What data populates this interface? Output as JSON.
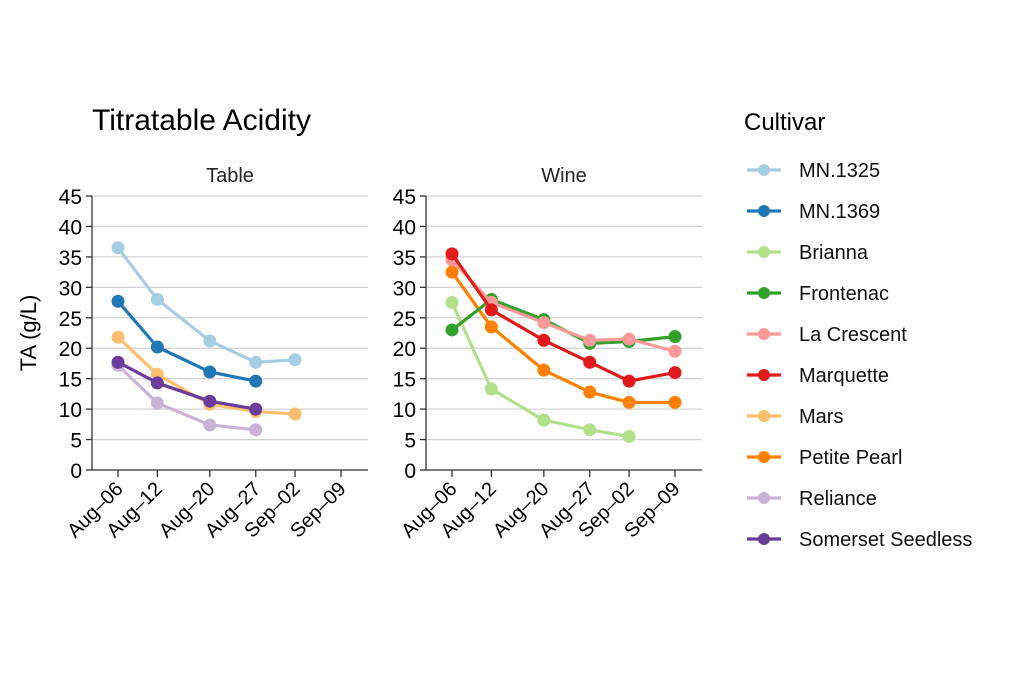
{
  "chart_data": {
    "type": "line",
    "title": "Titratable Acidity",
    "ylabel": "TA (g/L)",
    "xlabel": "",
    "ylim": [
      0,
      45
    ],
    "yticks": [
      "0",
      "5",
      "10",
      "15",
      "20",
      "25",
      "30",
      "35",
      "40",
      "45"
    ],
    "ytick_values": [
      0,
      5,
      10,
      15,
      20,
      25,
      30,
      35,
      40,
      45
    ],
    "grid": true,
    "categories": [
      "Aug–06",
      "Aug–12",
      "Aug–20",
      "Aug–27",
      "Sep–02",
      "Sep–09"
    ],
    "category_days": [
      0,
      6,
      14,
      21,
      27,
      34
    ],
    "legend": {
      "title": "Cultivar",
      "placement": "right",
      "entries": [
        {
          "name": "MN.1325",
          "color": "#a6cee3"
        },
        {
          "name": "MN.1369",
          "color": "#1f78b4"
        },
        {
          "name": "Brianna",
          "color": "#b2df8a"
        },
        {
          "name": "Frontenac",
          "color": "#33a02c"
        },
        {
          "name": "La Crescent",
          "color": "#fb9a99"
        },
        {
          "name": "Marquette",
          "color": "#e31a1c"
        },
        {
          "name": "Mars",
          "color": "#fdbf6f"
        },
        {
          "name": "Petite Pearl",
          "color": "#ff7f00"
        },
        {
          "name": "Reliance",
          "color": "#cab2d6"
        },
        {
          "name": "Somerset Seedless",
          "color": "#6a3d9a"
        }
      ]
    },
    "panels": [
      {
        "title": "Table",
        "series": [
          {
            "name": "MN.1325",
            "color": "#a6cee3",
            "values": [
              36.5,
              28.0,
              21.2,
              17.7,
              18.1,
              null
            ]
          },
          {
            "name": "MN.1369",
            "color": "#1f78b4",
            "values": [
              27.7,
              20.2,
              16.1,
              14.6,
              null,
              null
            ]
          },
          {
            "name": "Mars",
            "color": "#fdbf6f",
            "values": [
              21.8,
              15.7,
              10.8,
              9.6,
              9.2,
              null
            ]
          },
          {
            "name": "Reliance",
            "color": "#cab2d6",
            "values": [
              17.2,
              11.0,
              7.4,
              6.6,
              null,
              null
            ]
          },
          {
            "name": "Somerset Seedless",
            "color": "#6a3d9a",
            "values": [
              17.7,
              14.3,
              11.3,
              10.0,
              null,
              null
            ]
          }
        ]
      },
      {
        "title": "Wine",
        "series": [
          {
            "name": "Brianna",
            "color": "#b2df8a",
            "values": [
              27.5,
              13.3,
              8.2,
              6.6,
              5.5,
              null
            ]
          },
          {
            "name": "Petite Pearl",
            "color": "#ff7f00",
            "values": [
              32.5,
              23.5,
              16.4,
              12.8,
              11.1,
              11.1
            ]
          },
          {
            "name": "Frontenac",
            "color": "#33a02c",
            "values": [
              23.0,
              28.0,
              24.7,
              20.8,
              21.1,
              21.9
            ]
          },
          {
            "name": "La Crescent",
            "color": "#fb9a99",
            "values": [
              34.5,
              27.5,
              24.2,
              21.3,
              21.5,
              19.5
            ]
          },
          {
            "name": "Marquette",
            "color": "#e31a1c",
            "values": [
              35.5,
              26.3,
              21.3,
              17.7,
              14.6,
              16.0
            ]
          }
        ]
      }
    ]
  }
}
